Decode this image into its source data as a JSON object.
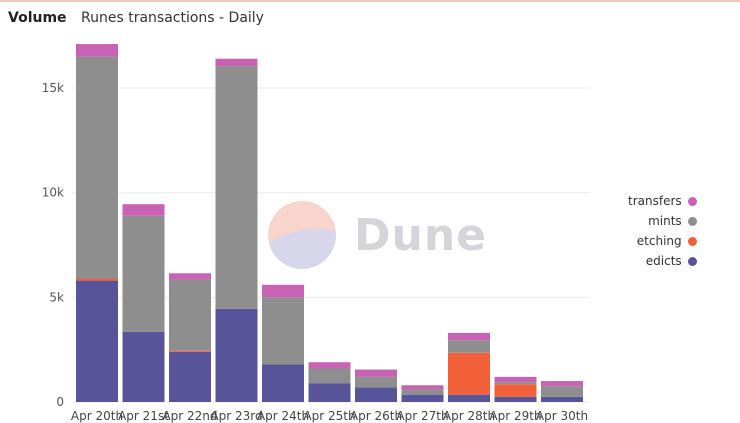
{
  "header": {
    "label": "Volume",
    "title": "Runes transactions - Daily"
  },
  "watermark": {
    "text": "Dune"
  },
  "colors": {
    "transfers": "#c862b4",
    "mints": "#8e8e8e",
    "etching": "#f2603a",
    "edicts": "#58549a"
  },
  "chart_data": {
    "type": "bar",
    "stacked": true,
    "title": "Runes transactions - Daily",
    "categories": [
      "Apr 20th",
      "Apr 21st",
      "Apr 22nd",
      "Apr 23rd",
      "Apr 24th",
      "Apr 25th",
      "Apr 26th",
      "Apr 27th",
      "Apr 28th",
      "Apr 29th",
      "Apr 30th"
    ],
    "series": [
      {
        "name": "edicts",
        "color": "#58549a",
        "values": [
          5800,
          3350,
          2400,
          4450,
          1800,
          900,
          700,
          350,
          350,
          250,
          250
        ]
      },
      {
        "name": "etching",
        "color": "#f2603a",
        "values": [
          100,
          0,
          50,
          0,
          0,
          0,
          0,
          0,
          2000,
          600,
          0
        ]
      },
      {
        "name": "mints",
        "color": "#8e8e8e",
        "values": [
          10600,
          5550,
          3400,
          11600,
          3200,
          700,
          500,
          250,
          600,
          100,
          500
        ]
      },
      {
        "name": "transfers",
        "color": "#c862b4",
        "values": [
          600,
          550,
          300,
          350,
          600,
          300,
          350,
          200,
          350,
          250,
          250
        ]
      }
    ],
    "yticks": [
      0,
      5000,
      10000,
      15000
    ],
    "ytick_labels": [
      "0",
      "5k",
      "10k",
      "15k"
    ],
    "ylim": [
      0,
      17200
    ],
    "grid": true,
    "legend_position": "right",
    "legend_order": [
      "transfers",
      "mints",
      "etching",
      "edicts"
    ]
  }
}
